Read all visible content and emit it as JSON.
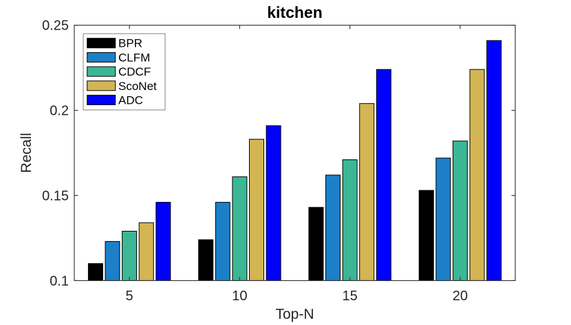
{
  "chart_data": {
    "type": "bar",
    "title": "kitchen",
    "xlabel": "Top-N",
    "ylabel": "Recall",
    "categories": [
      5,
      10,
      15,
      20
    ],
    "series": [
      {
        "name": "BPR",
        "color": "#000000",
        "values": [
          0.11,
          0.124,
          0.143,
          0.153
        ]
      },
      {
        "name": "CLFM",
        "color": "#1c80c8",
        "values": [
          0.123,
          0.146,
          0.162,
          0.172
        ]
      },
      {
        "name": "CDCF",
        "color": "#3cb796",
        "values": [
          0.129,
          0.161,
          0.171,
          0.182
        ]
      },
      {
        "name": "ScoNet",
        "color": "#d4b554",
        "values": [
          0.134,
          0.183,
          0.204,
          0.224
        ]
      },
      {
        "name": "ADC",
        "color": "#0000ff",
        "values": [
          0.146,
          0.191,
          0.224,
          0.241
        ]
      }
    ],
    "ylim": [
      0.1,
      0.25
    ],
    "yticks": [
      0.1,
      0.15,
      0.2,
      0.25
    ],
    "ytick_labels": [
      "0.1",
      "0.15",
      "0.2",
      "0.25"
    ],
    "xlim": [
      2.5,
      22.5
    ],
    "grid": false,
    "legend": {
      "position": "inside-top-left",
      "entries": [
        "BPR",
        "CLFM",
        "CDCF",
        "ScoNet",
        "ADC"
      ],
      "border_color": "#828282"
    },
    "axis_color": "#3a3a3a",
    "tick_label_color": "#262626",
    "bar_edge_color": "#000000",
    "background": "#ffffff"
  }
}
